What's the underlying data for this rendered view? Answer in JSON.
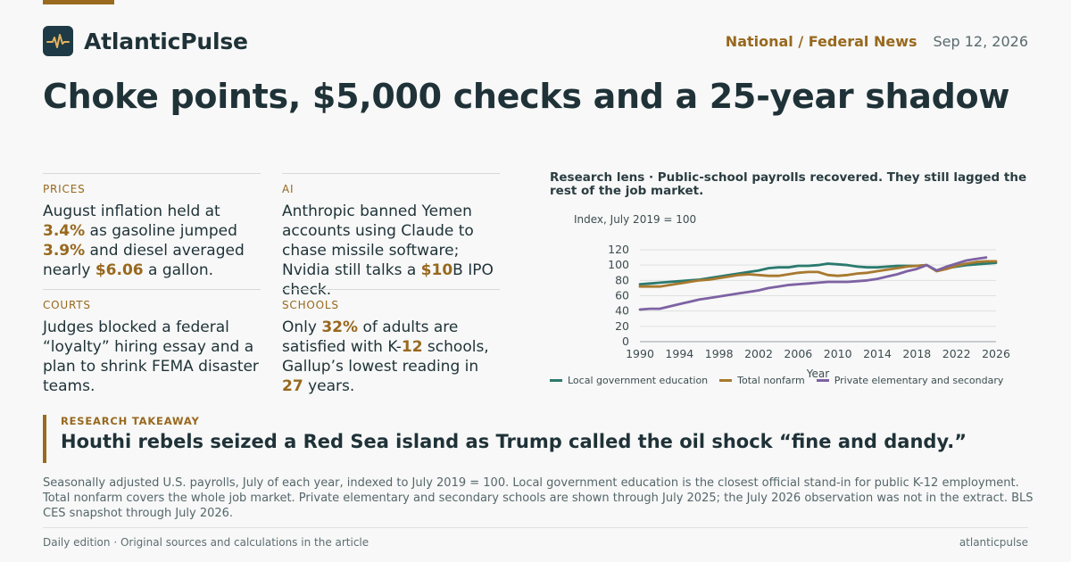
{
  "brand": {
    "name": "AtlanticPulse",
    "icon": "pulse-icon",
    "logo_color": "#1e3a46",
    "accent": "#9a6a1e"
  },
  "header": {
    "section": "National / Federal News",
    "date": "Sep 12, 2026"
  },
  "headline": "Choke points, $5,000 checks and a 25-year shadow",
  "cards": [
    {
      "kicker": "PRICES",
      "parts": [
        {
          "t": "August inflation held at "
        },
        {
          "t": "3.4%",
          "h": true
        },
        {
          "t": " as gasoline jumped "
        },
        {
          "t": "3.9%",
          "h": true
        },
        {
          "t": " and diesel averaged nearly "
        },
        {
          "t": "$6.06",
          "h": true
        },
        {
          "t": " a gallon."
        }
      ]
    },
    {
      "kicker": "AI",
      "parts": [
        {
          "t": "Anthropic banned Yemen accounts using Claude to chase missile software; Nvidia still talks a "
        },
        {
          "t": "$10",
          "h": true
        },
        {
          "t": "B IPO check."
        }
      ]
    },
    {
      "kicker": "COURTS",
      "parts": [
        {
          "t": "Judges blocked a federal “loyalty” hiring essay and a plan to shrink FEMA disaster teams."
        }
      ]
    },
    {
      "kicker": "SCHOOLS",
      "parts": [
        {
          "t": "Only "
        },
        {
          "t": "32%",
          "h": true
        },
        {
          "t": " of adults are satisfied with K-"
        },
        {
          "t": "12",
          "h": true
        },
        {
          "t": " schools, Gallup’s lowest reading in "
        },
        {
          "t": "27",
          "h": true
        },
        {
          "t": " years."
        }
      ]
    }
  ],
  "chart_data": {
    "type": "line",
    "title": "Research lens · Public-school payrolls recovered. They still lagged the rest of the job market.",
    "ylabel": "Index, July 2019 = 100",
    "xlabel": "Year",
    "xlim": [
      1990,
      2026
    ],
    "ylim": [
      0,
      120
    ],
    "xticks": [
      "1990",
      "1994",
      "1998",
      "2002",
      "2006",
      "2010",
      "2014",
      "2018",
      "2022",
      "2026"
    ],
    "yticks": [
      "0",
      "20",
      "40",
      "60",
      "80",
      "100",
      "120"
    ],
    "grid": true,
    "legend": "bottom",
    "x": [
      1990,
      1991,
      1992,
      1993,
      1994,
      1995,
      1996,
      1997,
      1998,
      1999,
      2000,
      2001,
      2002,
      2003,
      2004,
      2005,
      2006,
      2007,
      2008,
      2009,
      2010,
      2011,
      2012,
      2013,
      2014,
      2015,
      2016,
      2017,
      2018,
      2019,
      2020,
      2021,
      2022,
      2023,
      2024,
      2025,
      2026
    ],
    "series": [
      {
        "name": "Local government education",
        "color": "#2a7a6e",
        "values": [
          75,
          76,
          77,
          78,
          79,
          80,
          81,
          83,
          85,
          87,
          89,
          91,
          93,
          96,
          97,
          97,
          99,
          99,
          100,
          102,
          101,
          100,
          98,
          97,
          97,
          98,
          99,
          99,
          99,
          100,
          93,
          96,
          98,
          100,
          101,
          102,
          103
        ]
      },
      {
        "name": "Total nonfarm",
        "color": "#a8792f",
        "values": [
          72,
          72,
          72,
          74,
          76,
          78,
          80,
          81,
          83,
          85,
          87,
          88,
          87,
          86,
          86,
          88,
          90,
          91,
          91,
          87,
          86,
          87,
          89,
          90,
          92,
          94,
          96,
          98,
          99,
          100,
          92,
          95,
          99,
          102,
          104,
          105,
          105
        ]
      },
      {
        "name": "Private elementary and secondary",
        "color": "#7e62a3",
        "values": [
          42,
          43,
          43,
          46,
          49,
          52,
          55,
          57,
          59,
          61,
          63,
          65,
          67,
          70,
          72,
          74,
          75,
          76,
          77,
          78,
          78,
          78,
          79,
          80,
          82,
          85,
          88,
          92,
          95,
          100,
          93,
          98,
          102,
          106,
          108,
          110,
          null
        ]
      }
    ]
  },
  "takeaway": {
    "kicker": "RESEARCH TAKEAWAY",
    "text": "Houthi rebels seized a Red Sea island as Trump called the oil shock “fine and dandy.”"
  },
  "note": "Seasonally adjusted U.S. payrolls, July of each year, indexed to July 2019 = 100. Local government education is the closest official stand-in for public K-12 employment. Total nonfarm covers the whole job market. Private elementary and secondary schools are shown through July 2025; the July 2026 observation was not in the extract. BLS CES snapshot through July 2026.",
  "footer": {
    "left": "Daily edition · Original sources and calculations in the article",
    "right": "atlanticpulse"
  }
}
